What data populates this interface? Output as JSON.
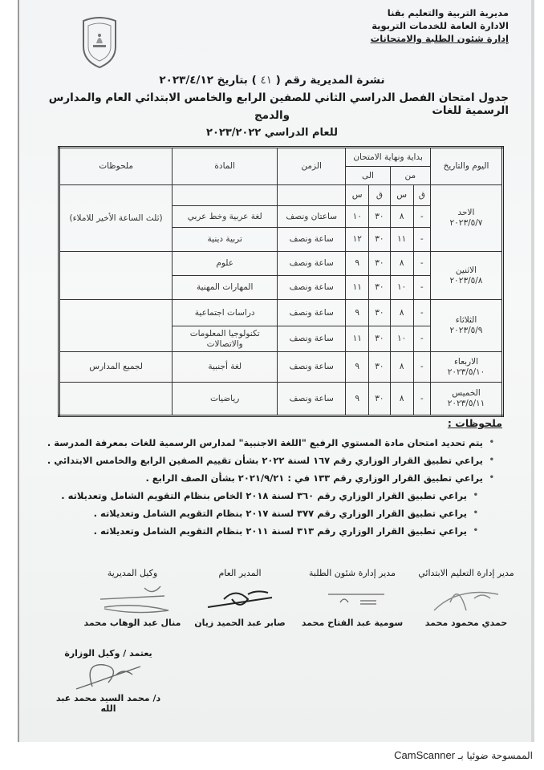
{
  "header": {
    "lines": [
      "مديرية التربية والتعليم بقنا",
      "الادارة العامة للخدمات التربوية",
      "إدارة شئون الطلبة والامتحانات"
    ],
    "bulletin_prefix": "نشرة المديرية رقم (",
    "bulletin_number": "٤١",
    "bulletin_mid": ") بتاريخ",
    "bulletin_date": "٢٠٢٣/٤/١٢",
    "title_line1": "جدول امتحان الفصل الدراسي الثاني للصفين الرابع والخامس الابتدائي العام والمدارس الرسمية للغات",
    "title_line2": "والدمج",
    "academic_year": "للعام الدراسي ٢٠٢٣/٢٠٢٢",
    "logo": "ministry-emblem"
  },
  "table": {
    "headers": {
      "day_date": "اليوم والتاريخ",
      "start_end": "بداية ونهاية الامتحان",
      "from": "من",
      "to": "الى",
      "duration": "الزمن",
      "subject": "المادة",
      "notes": "ملحوظات",
      "minute": "ق",
      "hour": "س"
    },
    "days": [
      {
        "day": "الاحد",
        "date": "٢٠٢٣/٥/٧",
        "notes": "(ثلث الساعة الأخير للاملاء)",
        "exams": [
          {
            "from_min": "-",
            "from_hour": "٨",
            "to_min": "٣٠",
            "to_hour": "١٠",
            "duration": "ساعتان ونصف",
            "subject": "لغة عربية وخط عربي"
          },
          {
            "from_min": "-",
            "from_hour": "١١",
            "to_min": "٣٠",
            "to_hour": "١٢",
            "duration": "ساعة ونصف",
            "subject": "تربية دينية"
          }
        ]
      },
      {
        "day": "الاثنين",
        "date": "٢٠٢٣/٥/٨",
        "notes": "",
        "exams": [
          {
            "from_min": "-",
            "from_hour": "٨",
            "to_min": "٣٠",
            "to_hour": "٩",
            "duration": "ساعة ونصف",
            "subject": "علوم"
          },
          {
            "from_min": "-",
            "from_hour": "١٠",
            "to_min": "٣٠",
            "to_hour": "١١",
            "duration": "ساعة ونصف",
            "subject": "المهارات المهنية"
          }
        ]
      },
      {
        "day": "الثلاثاء",
        "date": "٢٠٢٣/٥/٩",
        "notes": "",
        "exams": [
          {
            "from_min": "-",
            "from_hour": "٨",
            "to_min": "٣٠",
            "to_hour": "٩",
            "duration": "ساعة ونصف",
            "subject": "دراسات اجتماعية"
          },
          {
            "from_min": "-",
            "from_hour": "١٠",
            "to_min": "٣٠",
            "to_hour": "١١",
            "duration": "ساعة ونصف",
            "subject": "تكنولوجيا المعلومات والاتصالات"
          }
        ]
      },
      {
        "day": "الاربعاء",
        "date": "٢٠٢٣/٥/١٠",
        "notes": "لجميع المدارس",
        "exams": [
          {
            "from_min": "-",
            "from_hour": "٨",
            "to_min": "٣٠",
            "to_hour": "٩",
            "duration": "ساعة ونصف",
            "subject": "لغة أجنبية"
          }
        ]
      },
      {
        "day": "الخميس",
        "date": "٢٠٢٣/٥/١١",
        "notes": "",
        "exams": [
          {
            "from_min": "-",
            "from_hour": "٨",
            "to_min": "٣٠",
            "to_hour": "٩",
            "duration": "ساعة ونصف",
            "subject": "رياضيات"
          }
        ]
      }
    ]
  },
  "notes": {
    "heading": "ملحوظات :",
    "items": [
      "يتم تحديد امتحان مادة المستوي الرفيع \"اللغة الاجنبية\" لمدارس الرسمية للغات بمعرفة المدرسة .",
      "يراعي تطبيق القرار الوزاري رقم ١٦٧ لسنة ٢٠٢٢ بشأن تقييم الصفين الرابع والخامس الابتدائي .",
      "يراعي تطبيق القرار الوزاري رقم ١٣٣ في : ٢٠٢١/٩/٢١ بشأن الصف الرابع .",
      "يراعي تطبيق القرار الوزاري رقم ٣٦٠ لسنة ٢٠١٨ الخاص بنظام التقويم الشامل وتعديلاته .",
      "يراعي تطبيق القرار الوزاري رقم ٣٧٧ لسنة ٢٠١٧ بنظام التقويم الشامل وتعديلاته .",
      "يراعي تطبيق القرار الوزاري رقم ٣١٣ لسنة ٢٠١١ بنظام التقويم الشامل وتعديلاته ."
    ]
  },
  "signatures": [
    {
      "role": "مدير إدارة التعليم الابتدائي",
      "name": "حمدي محمود محمد"
    },
    {
      "role": "مدير إدارة شئون الطلبة",
      "name": "سومية عبد الفتاح محمد"
    },
    {
      "role": "المدير العام",
      "name": "صابر عبد الحميد زيان"
    },
    {
      "role": "وكيل المديرية",
      "name": "منال عبد الوهاب محمد"
    }
  ],
  "approval": {
    "label": "يعتمد / وكيل الوزارة",
    "name": "د/ محمد السيد محمد عبد الله"
  },
  "footer": {
    "prefix": "الممسوحة ضوئيا بـ",
    "app": "CamScanner"
  }
}
